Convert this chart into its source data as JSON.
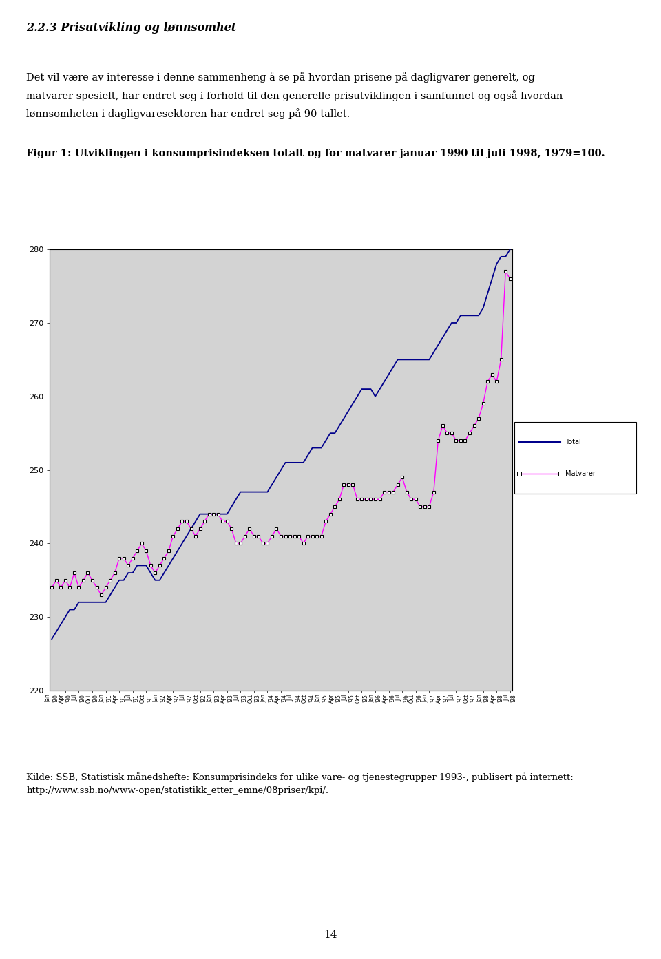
{
  "section_title": "2.2.3 Prisutvikling og lønnsomhet",
  "para_line1": "Det vil være av interesse i denne sammenheng å se på hvordan prisene på dagligvarer generelt, og",
  "para_line2": "matvarer spesielt, har endret seg i forhold til den generelle prisutviklingen i samfunnet og også hvordan",
  "para_line3": "lønnsomheten i dagligvaresektoren har endret seg på 90-tallet.",
  "figure_caption": "Figur 1: Utviklingen i konsumprisindeksen totalt og for matvarer januar 1990 til juli 1998, 1979=100.",
  "source_line1": "Kilde: SSB, Statistisk månedshefte: Konsumprisindeks for ulike vare- og tjenestegrupper 1993-, publisert på internett:",
  "source_line2": "http://www.ssb.no/www-open/statistikk_etter_emne/08priser/kpi/.",
  "page_number": "14",
  "ylim": [
    220,
    280
  ],
  "yticks": [
    220,
    230,
    240,
    250,
    260,
    270,
    280
  ],
  "total_color": "#00008B",
  "matvarer_color": "#FF00FF",
  "bg_color": "#D3D3D3",
  "legend_labels": [
    "Total",
    "Matvarer"
  ],
  "x_tick_labels": [
    "Jan\n'90",
    "Apr\n'90",
    "Jul\n'90",
    "Oct\n'90",
    "Jan\n'91",
    "Apr\n'91",
    "Jul\n'91",
    "Oct\n'91",
    "Jan\n'92",
    "Apr\n'92",
    "Jul\n'92",
    "Oct\n'92",
    "Jan\n'93",
    "Apr\n'93",
    "Jul\n'93",
    "Oct\n'93",
    "Jan\n'94",
    "Apr\n'94",
    "Jul\n'94",
    "Oct\n'94",
    "Jan\n'95",
    "Apr\n'95",
    "Jul\n'95",
    "Oct\n'95",
    "Jan\n'96",
    "Apr\n'96",
    "Jul\n'96",
    "Oct\n'96",
    "Jan\n'97",
    "Apr\n'97",
    "Jul\n'97",
    "Oct\n'97",
    "Jan\n'98",
    "Apr\n'98",
    "Jul\n'98"
  ],
  "total": [
    227,
    228,
    229,
    230,
    231,
    231,
    232,
    232,
    232,
    232,
    232,
    232,
    232,
    233,
    234,
    235,
    235,
    236,
    236,
    237,
    237,
    237,
    236,
    235,
    235,
    236,
    237,
    238,
    239,
    240,
    241,
    242,
    243,
    244,
    244,
    244,
    244,
    244,
    244,
    244,
    245,
    246,
    247,
    247,
    247,
    247,
    247,
    247,
    247,
    248,
    249,
    250,
    251,
    251,
    251,
    251,
    251,
    252,
    253,
    253,
    253,
    254,
    255,
    255,
    256,
    257,
    258,
    259,
    260,
    261,
    261,
    261,
    260,
    261,
    262,
    263,
    264,
    265,
    265,
    265,
    265,
    265,
    265,
    265,
    265,
    266,
    267,
    268,
    269,
    270,
    270,
    271,
    271,
    271,
    271,
    271,
    272,
    274,
    276,
    278,
    279,
    279,
    280
  ],
  "matvarer": [
    234,
    235,
    234,
    235,
    234,
    236,
    234,
    235,
    236,
    235,
    234,
    233,
    234,
    235,
    236,
    238,
    238,
    237,
    238,
    239,
    240,
    239,
    237,
    236,
    237,
    238,
    239,
    241,
    242,
    243,
    243,
    242,
    241,
    242,
    243,
    244,
    244,
    244,
    243,
    243,
    242,
    240,
    240,
    241,
    242,
    241,
    241,
    240,
    240,
    241,
    242,
    241,
    241,
    241,
    241,
    241,
    240,
    241,
    241,
    241,
    241,
    243,
    244,
    245,
    246,
    248,
    248,
    248,
    246,
    246,
    246,
    246,
    246,
    246,
    247,
    247,
    247,
    248,
    249,
    247,
    246,
    246,
    245,
    245,
    245,
    247,
    254,
    256,
    255,
    255,
    254,
    254,
    254,
    255,
    256,
    257,
    259,
    262,
    263,
    262,
    265,
    277,
    276
  ]
}
